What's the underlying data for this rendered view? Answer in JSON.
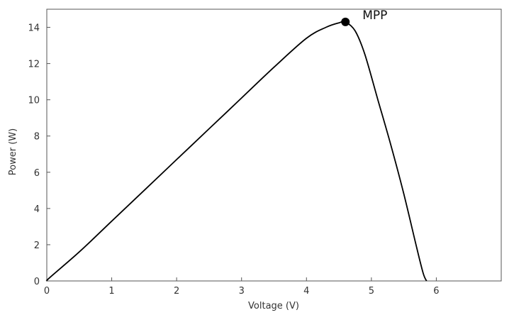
{
  "chart_data": {
    "type": "line",
    "xlabel": "Voltage (V)",
    "ylabel": "Power (W)",
    "xlim": [
      0,
      7
    ],
    "ylim": [
      0,
      15
    ],
    "xticks": [
      0,
      1,
      2,
      3,
      4,
      5,
      6
    ],
    "yticks": [
      0,
      2,
      4,
      6,
      8,
      10,
      12,
      14
    ],
    "grid": false,
    "series": [
      {
        "color": "#000000",
        "x": [
          0,
          0.05,
          0.5,
          1,
          1.5,
          2,
          2.5,
          3,
          3.5,
          4,
          4.3,
          4.5,
          4.6,
          4.75,
          4.9,
          5.1,
          5.3,
          5.5,
          5.7,
          5.8,
          5.85
        ],
        "y": [
          0,
          0.2,
          1.6,
          3.3,
          5.0,
          6.7,
          8.4,
          10.1,
          11.8,
          13.4,
          14.0,
          14.25,
          14.3,
          13.8,
          12.5,
          10.0,
          7.5,
          4.8,
          1.8,
          0.4,
          0
        ]
      }
    ],
    "annotations": [
      {
        "text": "MPP",
        "x": 4.6,
        "y": 14.3
      }
    ]
  }
}
